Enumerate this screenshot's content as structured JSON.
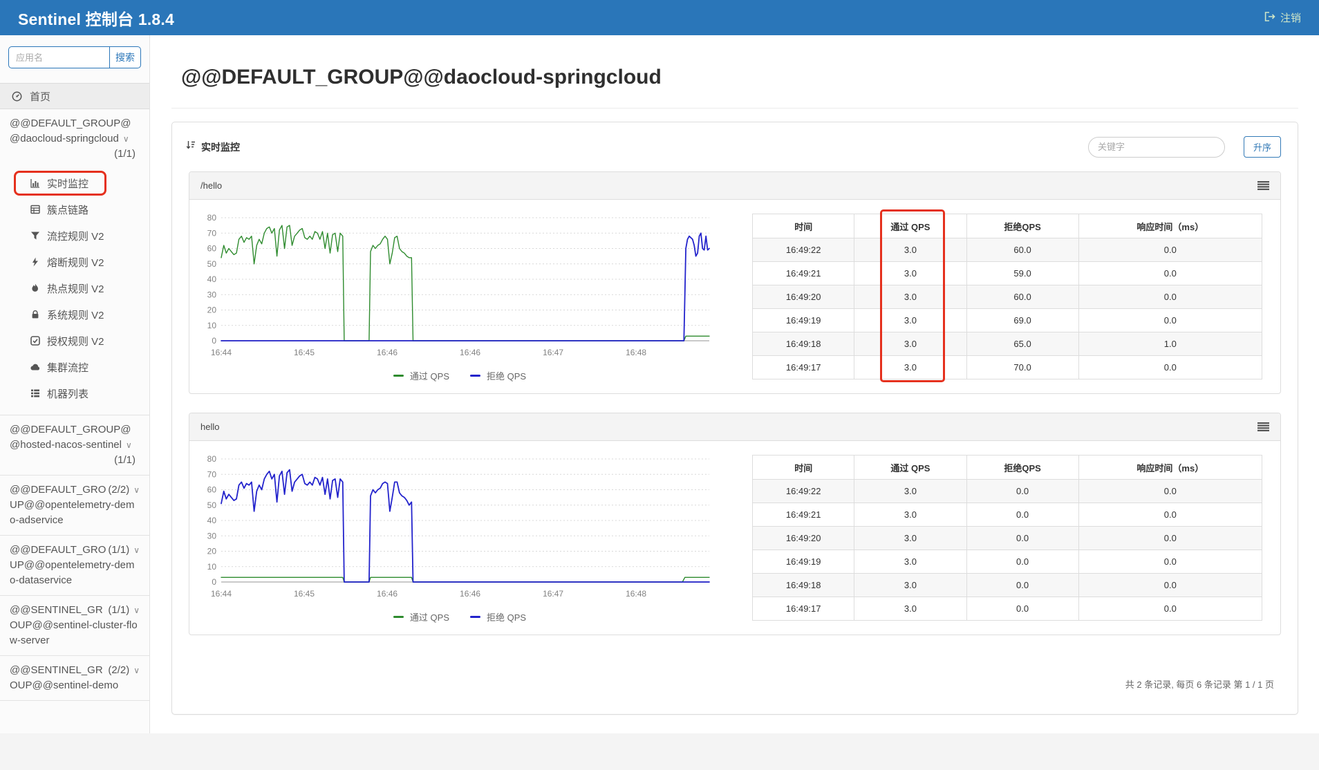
{
  "header": {
    "app_title": "Sentinel 控制台 1.8.4",
    "logout_label": "注销"
  },
  "sidebar": {
    "search_placeholder": "应用名",
    "search_button_label": "搜索",
    "home_label": "首页",
    "menu": [
      {
        "label": "实时监控",
        "icon": "bar-chart-icon",
        "annotated": true
      },
      {
        "label": "簇点链路",
        "icon": "table-icon"
      },
      {
        "label": "流控规则 V2",
        "icon": "filter-icon"
      },
      {
        "label": "熔断规则 V2",
        "icon": "bolt-icon"
      },
      {
        "label": "热点规则 V2",
        "icon": "fire-icon"
      },
      {
        "label": "系统规则 V2",
        "icon": "lock-icon"
      },
      {
        "label": "授权规则 V2",
        "icon": "check-square-icon"
      },
      {
        "label": "集群流控",
        "icon": "cloud-icon"
      },
      {
        "label": "机器列表",
        "icon": "list-icon"
      }
    ],
    "apps": [
      {
        "name": "@@DEFAULT_GROUP@@daocloud-springcloud",
        "count": "(1/1)"
      },
      {
        "name": "@@DEFAULT_GROUP@@hosted-nacos-sentinel",
        "count": "(1/1)"
      },
      {
        "name": "@@DEFAULT_GROUP@@opentelemetry-demo-adservice",
        "count": "(2/2)"
      },
      {
        "name": "@@DEFAULT_GROUP@@opentelemetry-demo-dataservice",
        "count": "(1/1)"
      },
      {
        "name": "@@SENTINEL_GROUP@@sentinel-cluster-flow-server",
        "count": "(1/1)"
      },
      {
        "name": "@@SENTINEL_GROUP@@sentinel-demo",
        "count": "(2/2)"
      }
    ]
  },
  "main": {
    "page_title": "@@DEFAULT_GROUP@@daocloud-springcloud",
    "section_title": "实时监控",
    "keyword_placeholder": "关键字",
    "sort_button_label": "升序",
    "pagination_text": "共 2 条记录, 每页 6 条记录 第 1 / 1 页"
  },
  "table_headers": [
    "时间",
    "通过 QPS",
    "拒绝QPS",
    "响应时间（ms）"
  ],
  "panels": [
    {
      "title": "/hello",
      "rows": [
        [
          "16:49:22",
          "3.0",
          "60.0",
          "0.0"
        ],
        [
          "16:49:21",
          "3.0",
          "59.0",
          "0.0"
        ],
        [
          "16:49:20",
          "3.0",
          "60.0",
          "0.0"
        ],
        [
          "16:49:19",
          "3.0",
          "69.0",
          "0.0"
        ],
        [
          "16:49:18",
          "3.0",
          "65.0",
          "1.0"
        ],
        [
          "16:49:17",
          "3.0",
          "70.0",
          "0.0"
        ]
      ]
    },
    {
      "title": "hello",
      "rows": [
        [
          "16:49:22",
          "3.0",
          "0.0",
          "0.0"
        ],
        [
          "16:49:21",
          "3.0",
          "0.0",
          "0.0"
        ],
        [
          "16:49:20",
          "3.0",
          "0.0",
          "0.0"
        ],
        [
          "16:49:19",
          "3.0",
          "0.0",
          "0.0"
        ],
        [
          "16:49:18",
          "3.0",
          "0.0",
          "0.0"
        ],
        [
          "16:49:17",
          "3.0",
          "0.0",
          "0.0"
        ]
      ]
    }
  ],
  "colors": {
    "header_blue": "#2a76b9",
    "link_blue": "#337ab7",
    "pass_green": "#2e8b2e",
    "block_blue": "#2323cc",
    "annotation_red": "#e5301d"
  },
  "chart_data": [
    {
      "type": "line",
      "title": "/hello",
      "ylim": [
        0,
        80
      ],
      "yticks": [
        0,
        10,
        20,
        30,
        40,
        50,
        60,
        70,
        80
      ],
      "x_ticks": [
        {
          "f": 0.0,
          "label": "16:44"
        },
        {
          "f": 0.17,
          "label": "16:45"
        },
        {
          "f": 0.34,
          "label": "16:46"
        },
        {
          "f": 0.51,
          "label": "16:46"
        },
        {
          "f": 0.68,
          "label": "16:47"
        },
        {
          "f": 0.85,
          "label": "16:48"
        }
      ],
      "legend_position": "bottom",
      "grid": true,
      "series": [
        {
          "name": "通过 QPS",
          "color": "#2e8b2e",
          "width": 1.4,
          "segments": [
            {
              "x0": 0.0,
              "x1": 0.249,
              "y": [
                54,
                62,
                57,
                60,
                58,
                56,
                57,
                66,
                68,
                64,
                67,
                66,
                68,
                50,
                62,
                66,
                63,
                70,
                73,
                74,
                70,
                73,
                55,
                72,
                75,
                60,
                74,
                75,
                62,
                68,
                70,
                72,
                73,
                67,
                66,
                68,
                66,
                71,
                70,
                66,
                71,
                60,
                70,
                57,
                69,
                70,
                58,
                70,
                68
              ]
            },
            {
              "x0": 0.252,
              "x1": 0.303,
              "y": [
                0,
                0
              ]
            },
            {
              "x0": 0.306,
              "x1": 0.39,
              "y": [
                58,
                62,
                60,
                62,
                63,
                66,
                68,
                66,
                50,
                57,
                67,
                68,
                60,
                58,
                57,
                55,
                54,
                54
              ]
            },
            {
              "x0": 0.393,
              "x1": 0.948,
              "y": [
                0,
                0
              ]
            },
            {
              "x0": 0.952,
              "x1": 1.0,
              "y": [
                3,
                3,
                3
              ]
            }
          ]
        },
        {
          "name": "拒绝 QPS",
          "color": "#2323cc",
          "width": 1.8,
          "segments": [
            {
              "x0": 0.0,
              "x1": 0.948,
              "y": [
                0,
                0
              ]
            },
            {
              "x0": 0.952,
              "x1": 1.0,
              "y": [
                60,
                66,
                68,
                67,
                66,
                62,
                55,
                57,
                68,
                70,
                60,
                59,
                68,
                59,
                60
              ]
            }
          ]
        }
      ]
    },
    {
      "type": "line",
      "title": "hello",
      "ylim": [
        0,
        80
      ],
      "yticks": [
        0,
        10,
        20,
        30,
        40,
        50,
        60,
        70,
        80
      ],
      "x_ticks": [
        {
          "f": 0.0,
          "label": "16:44"
        },
        {
          "f": 0.17,
          "label": "16:45"
        },
        {
          "f": 0.34,
          "label": "16:46"
        },
        {
          "f": 0.51,
          "label": "16:46"
        },
        {
          "f": 0.68,
          "label": "16:47"
        },
        {
          "f": 0.85,
          "label": "16:48"
        }
      ],
      "legend_position": "bottom",
      "grid": true,
      "series": [
        {
          "name": "通过 QPS",
          "color": "#2e8b2e",
          "width": 1.4,
          "segments": [
            {
              "x0": 0.0,
              "x1": 0.249,
              "y": [
                3,
                3
              ]
            },
            {
              "x0": 0.252,
              "x1": 0.303,
              "y": [
                0,
                0
              ]
            },
            {
              "x0": 0.306,
              "x1": 0.39,
              "y": [
                3,
                3
              ]
            },
            {
              "x0": 0.393,
              "x1": 0.945,
              "y": [
                0,
                0
              ]
            },
            {
              "x0": 0.95,
              "x1": 1.0,
              "y": [
                3,
                3
              ]
            }
          ]
        },
        {
          "name": "拒绝 QPS",
          "color": "#2323cc",
          "width": 1.8,
          "segments": [
            {
              "x0": 0.0,
              "x1": 0.249,
              "y": [
                51,
                59,
                54,
                57,
                55,
                53,
                54,
                63,
                65,
                61,
                64,
                63,
                65,
                46,
                59,
                63,
                60,
                67,
                70,
                72,
                67,
                70,
                52,
                69,
                72,
                57,
                71,
                73,
                59,
                65,
                67,
                69,
                70,
                64,
                63,
                65,
                63,
                68,
                67,
                63,
                68,
                57,
                67,
                54,
                66,
                67,
                55,
                67,
                65
              ]
            },
            {
              "x0": 0.252,
              "x1": 0.303,
              "y": [
                0,
                0
              ]
            },
            {
              "x0": 0.306,
              "x1": 0.39,
              "y": [
                56,
                60,
                58,
                60,
                61,
                64,
                65,
                64,
                46,
                55,
                65,
                65,
                58,
                56,
                55,
                53,
                50,
                52
              ]
            },
            {
              "x0": 0.393,
              "x1": 1.0,
              "y": [
                0,
                0
              ]
            }
          ]
        }
      ]
    }
  ]
}
